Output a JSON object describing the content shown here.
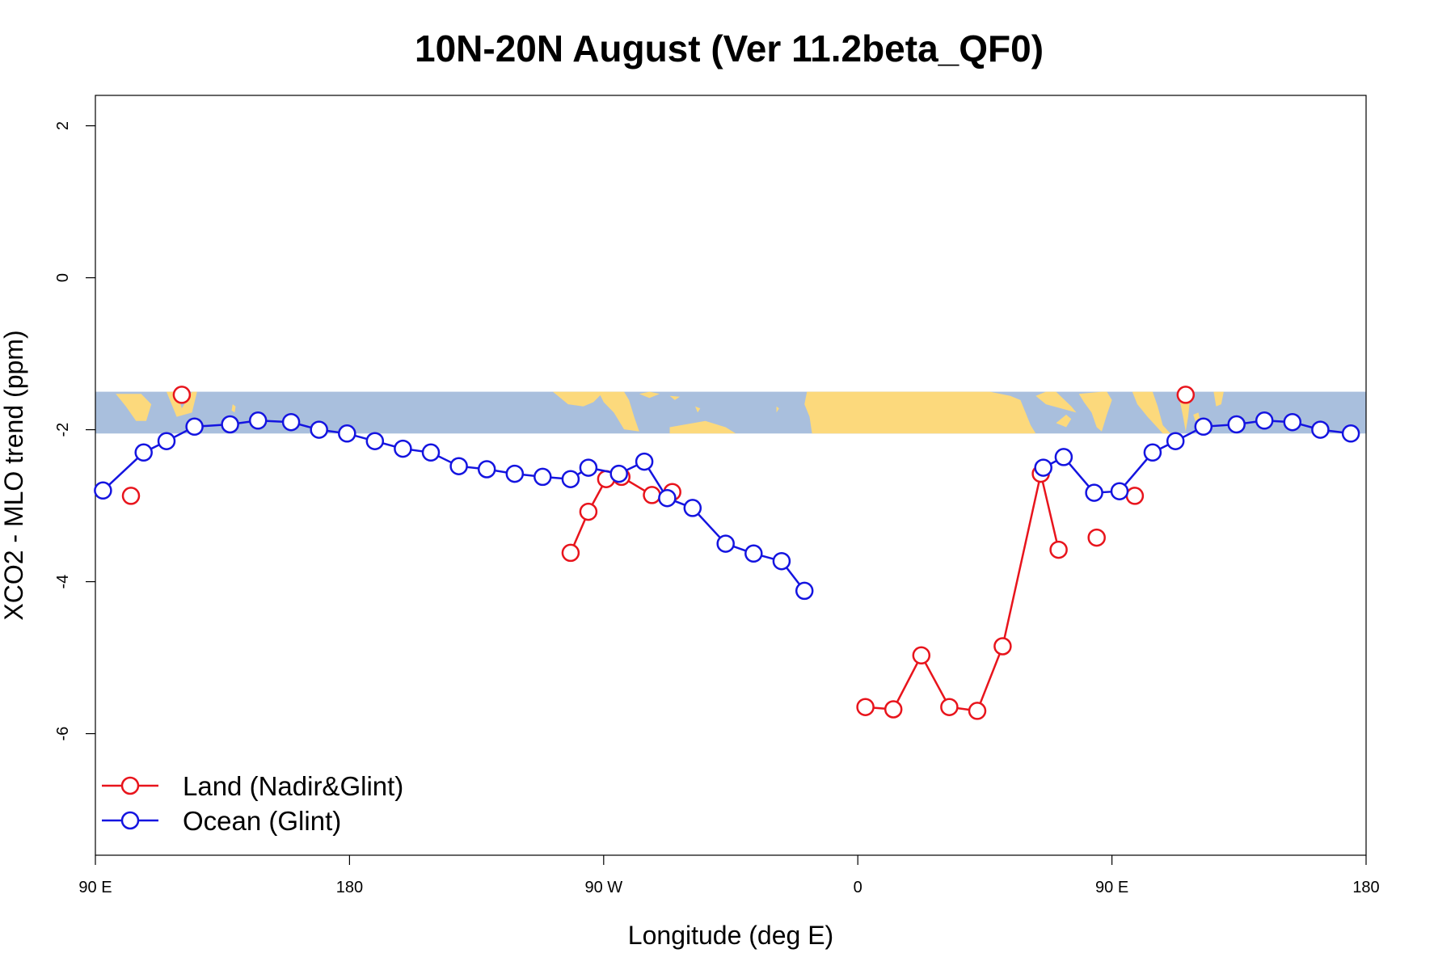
{
  "chart_data": {
    "type": "line",
    "title": "10N-20N August (Ver 11.2beta_QF0)",
    "xlabel": "Longitude (deg E)",
    "ylabel": "XCO2 - MLO trend (ppm)",
    "xlim": [
      90,
      340
    ],
    "ylim": [
      -7.6,
      2.4
    ],
    "x_ticks": [
      {
        "value": 90,
        "label": "90 E"
      },
      {
        "value": 140,
        "label": "180"
      },
      {
        "value": 190,
        "label": "90 W"
      },
      {
        "value": 240,
        "label": "0"
      },
      {
        "value": 290,
        "label": "90 E"
      },
      {
        "value": 340,
        "label": "180"
      }
    ],
    "y_ticks": [
      {
        "value": 2,
        "label": "2"
      },
      {
        "value": 0,
        "label": "0"
      },
      {
        "value": -2,
        "label": "-2"
      },
      {
        "value": -4,
        "label": "-4"
      },
      {
        "value": -6,
        "label": "-6"
      }
    ],
    "map_band": {
      "y_range": [
        -2.05,
        -1.5
      ],
      "ocean_color": "#a9bfdd",
      "land_color": "#fcd97c"
    },
    "legend_position": "bottom-left",
    "grid": false,
    "series": [
      {
        "name": "Land (Nadir&Glint)",
        "color": "#e8141c",
        "segments": [
          [
            [
              97,
              -2.87
            ]
          ],
          [
            [
              107,
              -1.54
            ]
          ],
          [
            [
              183.5,
              -3.62
            ],
            [
              187,
              -3.08
            ],
            [
              190.5,
              -2.65
            ],
            [
              193.5,
              -2.62
            ],
            [
              199.5,
              -2.86
            ],
            [
              203.5,
              -2.82
            ]
          ],
          [
            [
              241.5,
              -5.65
            ],
            [
              247,
              -5.68
            ],
            [
              252.5,
              -4.97
            ],
            [
              258,
              -5.65
            ],
            [
              263.5,
              -5.7
            ],
            [
              268.5,
              -4.85
            ],
            [
              276,
              -2.58
            ],
            [
              279.5,
              -3.58
            ]
          ],
          [
            [
              287,
              -3.42
            ]
          ],
          [
            [
              294.5,
              -2.87
            ]
          ],
          [
            [
              304.5,
              -1.54
            ]
          ]
        ]
      },
      {
        "name": "Ocean (Glint)",
        "color": "#1414e0",
        "segments": [
          [
            [
              91.5,
              -2.8
            ],
            [
              99.5,
              -2.3
            ],
            [
              104,
              -2.15
            ],
            [
              109.5,
              -1.96
            ],
            [
              116.5,
              -1.93
            ],
            [
              122,
              -1.88
            ],
            [
              128.5,
              -1.9
            ],
            [
              134,
              -2.0
            ],
            [
              139.5,
              -2.05
            ],
            [
              145,
              -2.15
            ],
            [
              150.5,
              -2.25
            ],
            [
              156,
              -2.3
            ],
            [
              161.5,
              -2.48
            ],
            [
              167,
              -2.52
            ],
            [
              172.5,
              -2.58
            ],
            [
              178,
              -2.62
            ],
            [
              183.5,
              -2.65
            ],
            [
              187,
              -2.5
            ],
            [
              193,
              -2.58
            ],
            [
              198,
              -2.42
            ],
            [
              202.5,
              -2.9
            ],
            [
              207.5,
              -3.03
            ],
            [
              214,
              -3.5
            ],
            [
              219.5,
              -3.63
            ],
            [
              225,
              -3.73
            ],
            [
              229.5,
              -4.12
            ]
          ],
          [
            [
              276.5,
              -2.5
            ],
            [
              280.5,
              -2.36
            ],
            [
              286.5,
              -2.83
            ],
            [
              291.5,
              -2.81
            ],
            [
              298,
              -2.3
            ],
            [
              302.5,
              -2.15
            ],
            [
              308,
              -1.96
            ],
            [
              314.5,
              -1.93
            ],
            [
              320,
              -1.88
            ],
            [
              325.5,
              -1.9
            ],
            [
              331,
              -2.0
            ],
            [
              337,
              -2.05
            ]
          ]
        ]
      }
    ]
  }
}
